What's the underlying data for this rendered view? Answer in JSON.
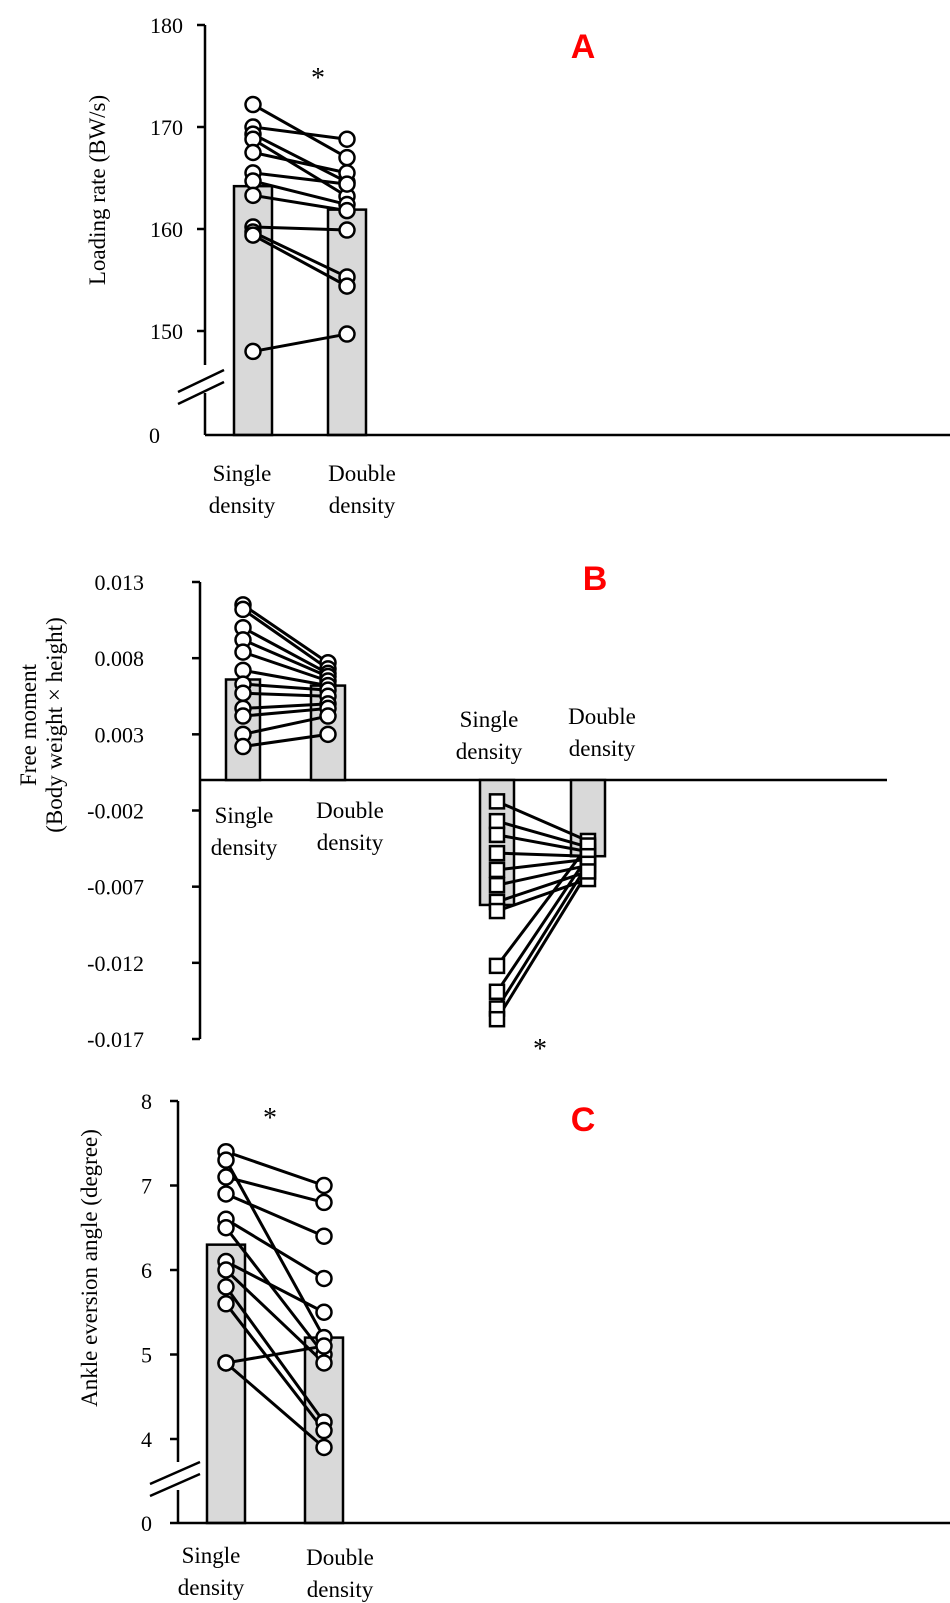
{
  "chart_data": [
    {
      "type": "bar",
      "panel_label": "A",
      "ylabel": "Loading rate (BW/s)",
      "yticks": [
        "180",
        "170",
        "160",
        "150",
        "0"
      ],
      "ylim": [
        145,
        180
      ],
      "axis_break": true,
      "categories": [
        "Single density",
        "Double density"
      ],
      "category_lines": [
        [
          "Single",
          "density"
        ],
        [
          "Double",
          "density"
        ]
      ],
      "bar_values": [
        164.2,
        161.9
      ],
      "paired_points": [
        [
          172.2,
          167.0
        ],
        [
          170.0,
          168.8
        ],
        [
          169.3,
          164.6
        ],
        [
          168.8,
          163.2
        ],
        [
          167.5,
          165.5
        ],
        [
          165.5,
          164.4
        ],
        [
          164.7,
          162.4
        ],
        [
          163.3,
          161.8
        ],
        [
          160.2,
          159.9
        ],
        [
          159.7,
          155.3
        ],
        [
          159.4,
          154.4
        ],
        [
          148.0,
          149.7
        ]
      ],
      "marker": "circle",
      "significance_marker": "*",
      "annotation_color": "#ff0000"
    },
    {
      "type": "bar",
      "panel_label": "B",
      "ylabel_lines": [
        "Free moment",
        "(Body weight × height)"
      ],
      "yticks": [
        "0.013",
        "0.008",
        "0.003",
        "-0.002",
        "-0.007",
        "-0.012",
        "-0.017"
      ],
      "ylim": [
        -0.017,
        0.013
      ],
      "groups": [
        {
          "categories": [
            "Single density",
            "Double density"
          ],
          "category_lines": [
            [
              "Single",
              "density"
            ],
            [
              "Double",
              "density"
            ]
          ],
          "bar_values": [
            0.0066,
            0.0062
          ],
          "paired_points": [
            [
              0.0115,
              0.0077
            ],
            [
              0.0112,
              0.0073
            ],
            [
              0.01,
              0.007
            ],
            [
              0.0092,
              0.0068
            ],
            [
              0.0084,
              0.0065
            ],
            [
              0.0072,
              0.0062
            ],
            [
              0.0063,
              0.0059
            ],
            [
              0.0057,
              0.0055
            ],
            [
              0.0047,
              0.005
            ],
            [
              0.0042,
              0.0047
            ],
            [
              0.003,
              0.0042
            ],
            [
              0.0022,
              0.003
            ]
          ],
          "marker": "circle"
        },
        {
          "categories": [
            "Single density",
            "Double density"
          ],
          "category_lines": [
            [
              "Single",
              "density"
            ],
            [
              "Double",
              "density"
            ]
          ],
          "bar_values": [
            -0.0082,
            -0.005
          ],
          "paired_points": [
            [
              -0.0014,
              -0.004
            ],
            [
              -0.0027,
              -0.0044
            ],
            [
              -0.0036,
              -0.0047
            ],
            [
              -0.0048,
              -0.005
            ],
            [
              -0.0059,
              -0.0052
            ],
            [
              -0.0069,
              -0.0056
            ],
            [
              -0.008,
              -0.006
            ],
            [
              -0.0086,
              -0.0065
            ],
            [
              -0.0122,
              -0.0043
            ],
            [
              -0.0139,
              -0.005
            ],
            [
              -0.015,
              -0.0055
            ],
            [
              -0.0157,
              -0.006
            ]
          ],
          "marker": "square",
          "significance_marker": "*"
        }
      ],
      "annotation_color": "#ff0000"
    },
    {
      "type": "bar",
      "panel_label": "C",
      "ylabel": "Ankle eversion angle (degree)",
      "yticks": [
        "8",
        "7",
        "6",
        "5",
        "4",
        "0"
      ],
      "ylim": [
        3.5,
        8
      ],
      "axis_break": true,
      "categories": [
        "Single density",
        "Double density"
      ],
      "category_lines": [
        [
          "Single",
          "density"
        ],
        [
          "Double",
          "density"
        ]
      ],
      "bar_values": [
        6.3,
        5.2
      ],
      "paired_points": [
        [
          7.4,
          7.0
        ],
        [
          7.3,
          5.2
        ],
        [
          7.1,
          6.8
        ],
        [
          6.9,
          6.4
        ],
        [
          6.6,
          5.9
        ],
        [
          6.5,
          5.0
        ],
        [
          6.1,
          5.5
        ],
        [
          6.0,
          4.9
        ],
        [
          5.8,
          4.2
        ],
        [
          5.6,
          4.1
        ],
        [
          4.9,
          5.1
        ],
        [
          4.9,
          3.9
        ]
      ],
      "marker": "circle",
      "significance_marker": "*",
      "annotation_color": "#ff0000"
    }
  ]
}
